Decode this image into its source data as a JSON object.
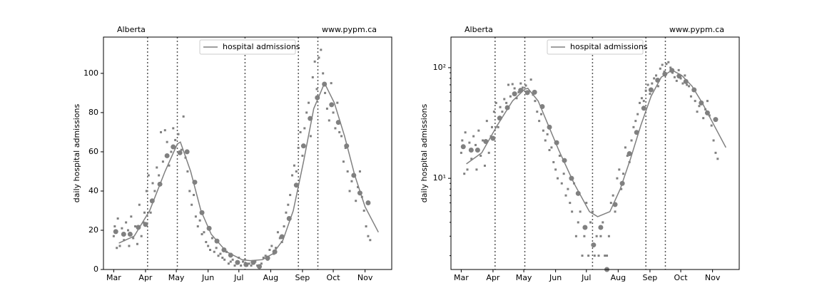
{
  "chart_data": [
    {
      "type": "line",
      "yscale": "linear",
      "ylabel": "daily hospital admissions",
      "annotations": [
        "Alberta",
        "www.pypm.ca"
      ],
      "legend": "upper center",
      "xlim": [
        -10,
        271
      ],
      "ylim": [
        0,
        118.5
      ],
      "xticks": [
        {
          "value": 0,
          "label": "Mar"
        },
        {
          "value": 31,
          "label": "Apr"
        },
        {
          "value": 61,
          "label": "May"
        },
        {
          "value": 92,
          "label": "Jun"
        },
        {
          "value": 122,
          "label": "Jul"
        },
        {
          "value": 153,
          "label": "Aug"
        },
        {
          "value": 184,
          "label": "Sep"
        },
        {
          "value": 214,
          "label": "Oct"
        },
        {
          "value": 245,
          "label": "Nov"
        }
      ],
      "yticks": [
        0,
        20,
        40,
        60,
        80,
        100
      ],
      "vlines": [
        33,
        62,
        128,
        180,
        199
      ],
      "series": [
        {
          "marker": "small",
          "color": "#808080",
          "x": [
            0,
            1,
            3,
            4,
            6,
            8,
            10,
            12,
            14,
            15,
            17,
            19,
            21,
            23,
            25,
            27,
            29,
            30,
            32,
            34,
            36,
            38,
            40,
            42,
            44,
            46,
            48,
            50,
            52,
            54,
            56,
            58,
            60,
            63,
            66,
            68,
            70,
            72,
            74,
            76,
            78,
            80,
            82,
            84,
            86,
            88,
            90,
            92,
            94,
            96,
            98,
            100,
            102,
            104,
            106,
            108,
            110,
            112,
            114,
            116,
            118,
            120,
            122,
            124,
            126,
            128,
            130,
            132,
            134,
            136,
            138,
            140,
            142,
            144,
            146,
            148,
            150,
            152,
            154,
            156,
            158,
            160,
            162,
            164,
            166,
            168,
            170,
            172,
            174,
            176,
            178,
            180,
            182,
            184,
            186,
            188,
            190,
            192,
            194,
            196,
            198,
            200,
            202,
            204,
            206,
            208,
            210,
            212,
            214,
            216,
            218,
            220,
            222,
            224,
            226,
            228,
            230,
            232,
            234,
            236,
            238,
            240,
            242,
            244,
            246,
            248,
            250
          ],
          "values": [
            17,
            22,
            11,
            26,
            12,
            21,
            15,
            24,
            20,
            12,
            27,
            16,
            22,
            13,
            33,
            17,
            24,
            29,
            40,
            48,
            29,
            44,
            40,
            52,
            48,
            70,
            55,
            71,
            65,
            53,
            60,
            72,
            66,
            69,
            61,
            78,
            57,
            50,
            40,
            33,
            38,
            27,
            22,
            25,
            18,
            19,
            14,
            12,
            10,
            16,
            9,
            11,
            7,
            8,
            6,
            5,
            9,
            3,
            4,
            5,
            2,
            3,
            6,
            2,
            4,
            5,
            2,
            3,
            2,
            3,
            4,
            2,
            2,
            3,
            6,
            7,
            5,
            10,
            12,
            8,
            11,
            19,
            16,
            14,
            22,
            29,
            33,
            38,
            48,
            53,
            50,
            62,
            70,
            58,
            72,
            80,
            85,
            68,
            98,
            106,
            92,
            108,
            112,
            100,
            90,
            82,
            76,
            95,
            80,
            72,
            85,
            70,
            68,
            55,
            62,
            50,
            40,
            45,
            48,
            35,
            42,
            50,
            37,
            30,
            22,
            17,
            15
          ]
        },
        {
          "marker": "large",
          "color": "#808080",
          "x": [
            2,
            9.7,
            16,
            24,
            31,
            37.5,
            45,
            52,
            58,
            64.5,
            71.5,
            79,
            86,
            93,
            100.6,
            107.5,
            114,
            120.7,
            129,
            136,
            142,
            150,
            157,
            164,
            171,
            178,
            185,
            191.5,
            198.5,
            205.4,
            212.4,
            219,
            227,
            234,
            240,
            248
          ],
          "values": [
            19.3,
            18,
            18,
            21.5,
            23,
            35,
            43.5,
            58,
            62.5,
            59.5,
            60,
            44.5,
            29,
            21,
            14.5,
            10,
            7.3,
            3.6,
            2.5,
            3.6,
            1.5,
            5.8,
            9,
            16.7,
            26,
            43,
            63,
            77,
            87.6,
            94.5,
            84,
            75,
            63,
            48,
            39,
            34
          ]
        },
        {
          "marker": "none",
          "name": "hospital admissions",
          "color": "#808080",
          "x": [
            5,
            20,
            35,
            50,
            62,
            65,
            75,
            85,
            95,
            110,
            125,
            133,
            145,
            155,
            165,
            175,
            185,
            195,
            205.5,
            215,
            225,
            235,
            245,
            258
          ],
          "values": [
            13.5,
            17,
            30,
            50,
            64,
            65,
            50,
            30,
            18,
            9,
            5,
            4.5,
            5,
            8,
            15,
            30,
            55,
            82,
            95,
            85,
            68,
            48,
            32,
            19
          ]
        }
      ]
    },
    {
      "type": "line",
      "yscale": "log",
      "ylabel": "daily hospital admissions",
      "annotations": [
        "Alberta",
        "www.pypm.ca"
      ],
      "legend": "upper center",
      "xlim": [
        -10,
        271
      ],
      "ylim": [
        1.5,
        189
      ],
      "xticks": [
        {
          "value": 0,
          "label": "Mar"
        },
        {
          "value": 31,
          "label": "Apr"
        },
        {
          "value": 61,
          "label": "May"
        },
        {
          "value": 92,
          "label": "Jun"
        },
        {
          "value": 122,
          "label": "Jul"
        },
        {
          "value": 153,
          "label": "Aug"
        },
        {
          "value": 184,
          "label": "Sep"
        },
        {
          "value": 214,
          "label": "Oct"
        },
        {
          "value": 245,
          "label": "Nov"
        }
      ],
      "yticks": [
        {
          "value": 10,
          "label": "10¹"
        },
        {
          "value": 100,
          "label": "10²"
        }
      ],
      "vlines": [
        33,
        62,
        128,
        180,
        199
      ],
      "series": [
        {
          "marker": "small",
          "color": "#808080",
          "x": [
            0,
            1,
            3,
            4,
            6,
            8,
            10,
            12,
            14,
            15,
            17,
            19,
            21,
            23,
            25,
            27,
            29,
            30,
            32,
            34,
            36,
            38,
            40,
            42,
            44,
            46,
            48,
            50,
            52,
            54,
            56,
            58,
            60,
            63,
            66,
            68,
            70,
            72,
            74,
            76,
            78,
            80,
            82,
            84,
            86,
            88,
            90,
            92,
            94,
            96,
            98,
            100,
            102,
            104,
            106,
            108,
            110,
            112,
            114,
            116,
            118,
            120,
            122,
            124,
            126,
            128,
            130,
            132,
            134,
            136,
            138,
            140,
            142,
            144,
            146,
            148,
            150,
            152,
            154,
            156,
            158,
            160,
            162,
            164,
            166,
            168,
            170,
            172,
            174,
            176,
            178,
            180,
            182,
            184,
            186,
            188,
            190,
            192,
            194,
            196,
            198,
            200,
            202,
            204,
            206,
            208,
            210,
            212,
            214,
            216,
            218,
            220,
            222,
            224,
            226,
            228,
            230,
            232,
            234,
            236,
            238,
            240,
            242,
            244,
            246,
            248,
            250
          ],
          "values": [
            17,
            22,
            11,
            26,
            12,
            21,
            15,
            24,
            20,
            12,
            27,
            16,
            22,
            13,
            33,
            17,
            24,
            29,
            40,
            48,
            29,
            44,
            40,
            52,
            48,
            70,
            55,
            71,
            65,
            53,
            60,
            72,
            66,
            69,
            61,
            78,
            57,
            50,
            40,
            33,
            38,
            27,
            22,
            25,
            18,
            19,
            14,
            12,
            10,
            16,
            9,
            11,
            7,
            8,
            6,
            5,
            9,
            3,
            4,
            5,
            2,
            3,
            6,
            2,
            4,
            5,
            2,
            3,
            2,
            3,
            4,
            2,
            2,
            3,
            6,
            7,
            5,
            10,
            12,
            8,
            11,
            19,
            16,
            14,
            22,
            29,
            33,
            38,
            48,
            53,
            50,
            62,
            70,
            58,
            72,
            80,
            85,
            68,
            98,
            106,
            92,
            108,
            112,
            100,
            90,
            82,
            76,
            95,
            80,
            72,
            85,
            70,
            68,
            55,
            62,
            50,
            40,
            45,
            48,
            35,
            42,
            50,
            37,
            30,
            22,
            17,
            15
          ]
        },
        {
          "marker": "large",
          "color": "#808080",
          "x": [
            2,
            9.7,
            16,
            24,
            31,
            37.5,
            45,
            52,
            58,
            64.5,
            71.5,
            79,
            86,
            93,
            100.6,
            107.5,
            114,
            120.7,
            129,
            136,
            142,
            150,
            157,
            164,
            171,
            178,
            185,
            191.5,
            198.5,
            205.4,
            212.4,
            219,
            227,
            234,
            240,
            248
          ],
          "values": [
            19.3,
            18,
            18,
            21.5,
            23,
            35,
            43.5,
            58,
            62.5,
            59.5,
            60,
            44.5,
            29,
            21,
            14.5,
            10,
            7.3,
            3.6,
            2.5,
            3.6,
            1.5,
            5.8,
            9,
            16.7,
            26,
            43,
            63,
            77,
            87.6,
            94.5,
            84,
            75,
            63,
            48,
            39,
            34
          ]
        },
        {
          "marker": "none",
          "name": "hospital admissions",
          "color": "#808080",
          "x": [
            5,
            20,
            35,
            50,
            62,
            65,
            75,
            85,
            95,
            110,
            125,
            133,
            145,
            155,
            165,
            175,
            185,
            195,
            205.5,
            215,
            225,
            235,
            245,
            258
          ],
          "values": [
            13.5,
            17,
            30,
            50,
            64,
            65,
            50,
            30,
            18,
            9,
            5,
            4.5,
            5,
            8,
            15,
            30,
            55,
            82,
            95,
            85,
            68,
            48,
            32,
            19
          ]
        }
      ]
    }
  ]
}
